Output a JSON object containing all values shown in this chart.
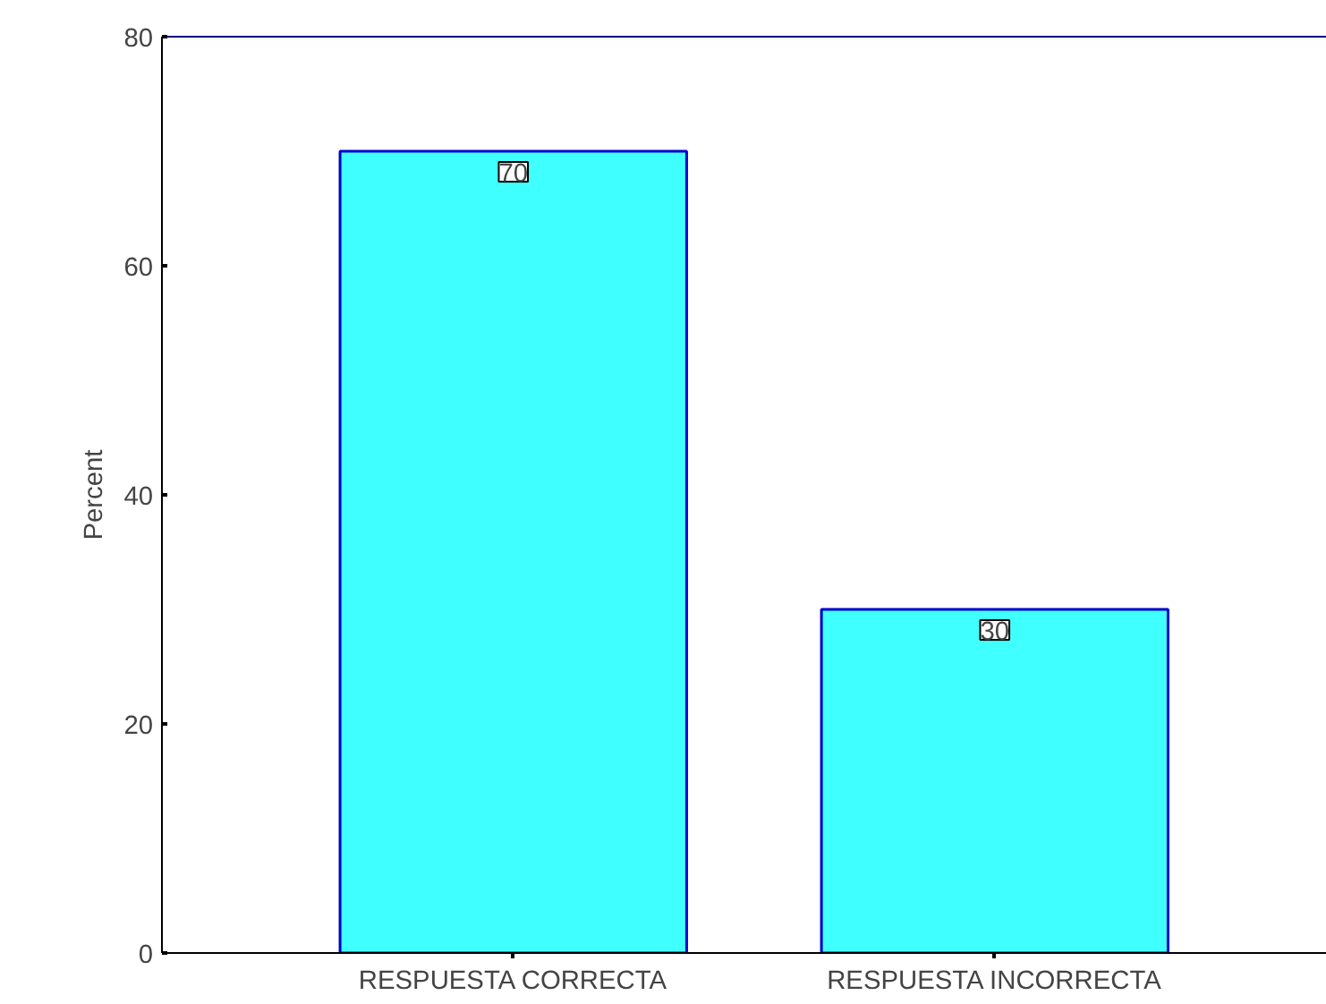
{
  "chart_data": {
    "type": "bar",
    "ylabel": "Percent",
    "categories": [
      "RESPUESTA CORRECTA",
      "RESPUESTA INCORRECTA"
    ],
    "values": [
      70,
      30
    ],
    "color": "#40ffff",
    "ylim": [
      0,
      80
    ],
    "yticks": [
      0,
      20,
      40,
      60,
      80
    ],
    "grid": false,
    "data_labels": true
  }
}
